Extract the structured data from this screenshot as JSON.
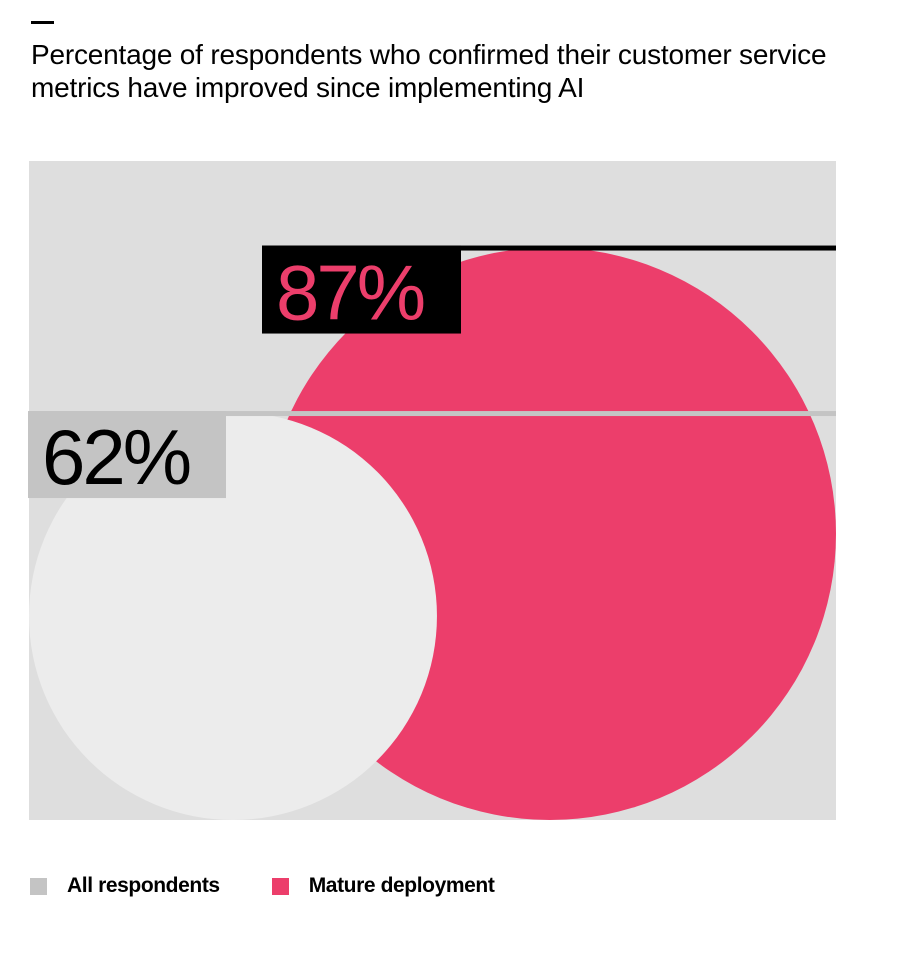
{
  "chart_data": {
    "type": "bubble",
    "title": "Percentage of respondents who confirmed their customer service metrics have improved since implementing AI",
    "unit": "%",
    "series": [
      {
        "name": "All respondents",
        "value": 62,
        "label": "62%",
        "color": "#ececec",
        "legend_color": "#c4c4c4",
        "label_bg": "#c4c4c4",
        "label_color": "#000000"
      },
      {
        "name": "Mature deployment",
        "value": 87,
        "label": "87%",
        "color": "#ec3e6b",
        "legend_color": "#ec3e6b",
        "label_bg": "#000000",
        "label_color": "#ec3e6b"
      }
    ],
    "background": "#dedede",
    "legend_position": "bottom-left"
  }
}
